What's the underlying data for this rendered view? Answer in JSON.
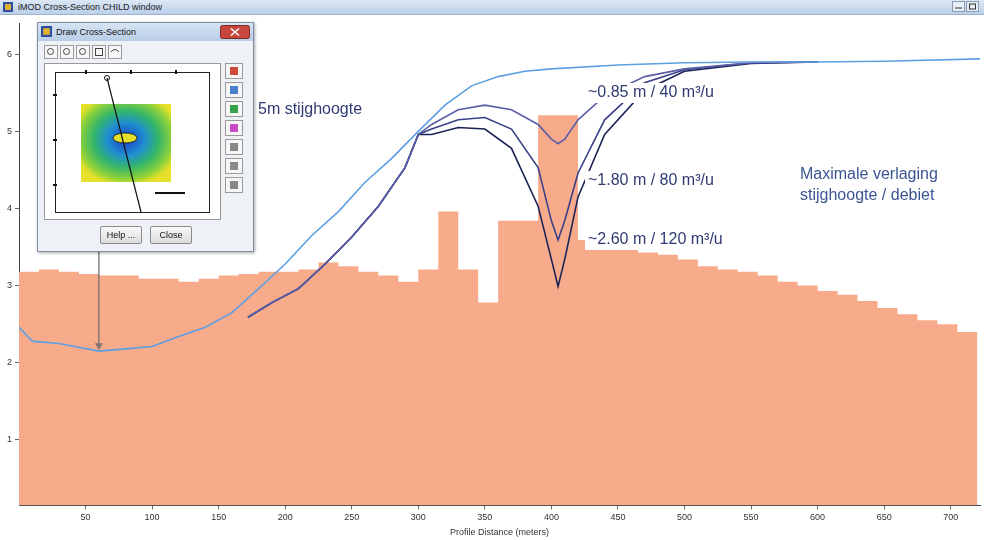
{
  "window": {
    "title": "iMOD Cross-Section CHILD window",
    "dialog": {
      "title": "Draw Cross-Section",
      "buttons": [
        "Help ...",
        "Close"
      ]
    }
  },
  "chart_data": {
    "type": "line",
    "x_label": "Profile Distance (meters)",
    "xlim": [
      0,
      722
    ],
    "xticks": [
      50,
      100,
      150,
      200,
      250,
      300,
      350,
      400,
      450,
      500,
      550,
      600,
      650,
      700
    ],
    "ylim": [
      0.15,
      6.4
    ],
    "yticks": [
      1,
      2,
      3,
      4,
      5,
      6
    ],
    "grid": false,
    "annotations": [
      {
        "text": "5m stijghoogte"
      },
      {
        "text": "~0.85 m / 40 m³/u"
      },
      {
        "text": "~1.80 m / 80 m³/u"
      },
      {
        "text": "~2.60 m / 120 m³/u"
      },
      {
        "text": [
          "Maximale verlaging",
          "stijghoogte / debiet"
        ]
      }
    ],
    "series": [
      {
        "type": "area",
        "line_style": "steps",
        "color": "#f8ab8b",
        "x": [
          0,
          15,
          30,
          45,
          60,
          75,
          90,
          105,
          120,
          135,
          150,
          165,
          180,
          195,
          210,
          225,
          240,
          255,
          270,
          285,
          300,
          315,
          330,
          345,
          360,
          375,
          390,
          405,
          420,
          435,
          450,
          465,
          480,
          495,
          510,
          525,
          540,
          555,
          570,
          585,
          600,
          615,
          630,
          645,
          660,
          675,
          690,
          705,
          720
        ],
        "values": [
          3.18,
          3.21,
          3.18,
          3.15,
          3.13,
          3.13,
          3.09,
          3.09,
          3.05,
          3.09,
          3.13,
          3.15,
          3.18,
          3.18,
          3.21,
          3.3,
          3.25,
          3.18,
          3.13,
          3.05,
          3.21,
          3.96,
          3.21,
          2.78,
          3.84,
          3.84,
          5.21,
          5.21,
          3.59,
          3.55,
          3.49,
          3.43,
          3.4,
          3.34,
          3.25,
          3.21,
          3.18,
          3.13,
          3.05,
          3.0,
          2.93,
          2.88,
          2.8,
          2.71,
          2.63,
          2.55,
          2.5,
          2.4,
          2.3
        ]
      },
      {
        "type": "line",
        "color": "#5d9fe3",
        "x": [
          0,
          10,
          30,
          60,
          80,
          100,
          120,
          140,
          160,
          180,
          200,
          220,
          240,
          260,
          280,
          300,
          320,
          340,
          360,
          380,
          400,
          450,
          500,
          550,
          600,
          650,
          722
        ],
        "values": [
          2.46,
          2.28,
          2.25,
          2.15,
          2.18,
          2.21,
          2.34,
          2.46,
          2.65,
          2.96,
          3.28,
          3.65,
          3.96,
          4.34,
          4.65,
          5.0,
          5.34,
          5.59,
          5.71,
          5.78,
          5.81,
          5.86,
          5.89,
          5.9,
          5.9,
          5.91,
          5.94
        ]
      },
      {
        "type": "line",
        "color": "#5a5ea6",
        "x": [
          172,
          190,
          210,
          230,
          250,
          270,
          290,
          300,
          310,
          330,
          350,
          370,
          390,
          400,
          405,
          410,
          420,
          440,
          470,
          500,
          550,
          600
        ],
        "values": [
          2.59,
          2.78,
          2.96,
          3.28,
          3.63,
          4.03,
          4.53,
          4.96,
          5.09,
          5.28,
          5.34,
          5.28,
          5.09,
          4.9,
          4.84,
          4.9,
          5.15,
          5.46,
          5.71,
          5.81,
          5.89,
          5.9
        ]
      },
      {
        "type": "line",
        "color": "#3a4186",
        "x": [
          172,
          190,
          210,
          230,
          250,
          270,
          290,
          300,
          310,
          330,
          350,
          370,
          390,
          400,
          405,
          410,
          420,
          440,
          470,
          500,
          550,
          600
        ],
        "values": [
          2.59,
          2.78,
          2.96,
          3.28,
          3.63,
          4.03,
          4.53,
          4.96,
          5.03,
          5.15,
          5.18,
          5.03,
          4.53,
          3.84,
          3.59,
          3.84,
          4.46,
          5.15,
          5.63,
          5.8,
          5.89,
          5.9
        ]
      },
      {
        "type": "line",
        "color": "#1b2457",
        "x": [
          172,
          190,
          210,
          230,
          250,
          270,
          290,
          300,
          310,
          330,
          350,
          370,
          390,
          400,
          405,
          410,
          420,
          440,
          470,
          500,
          550,
          600
        ],
        "values": [
          2.59,
          2.78,
          2.96,
          3.28,
          3.63,
          4.03,
          4.53,
          4.96,
          4.96,
          5.05,
          5.03,
          4.78,
          4.03,
          3.34,
          2.99,
          3.34,
          4.15,
          4.96,
          5.53,
          5.78,
          5.88,
          5.9
        ]
      }
    ]
  }
}
